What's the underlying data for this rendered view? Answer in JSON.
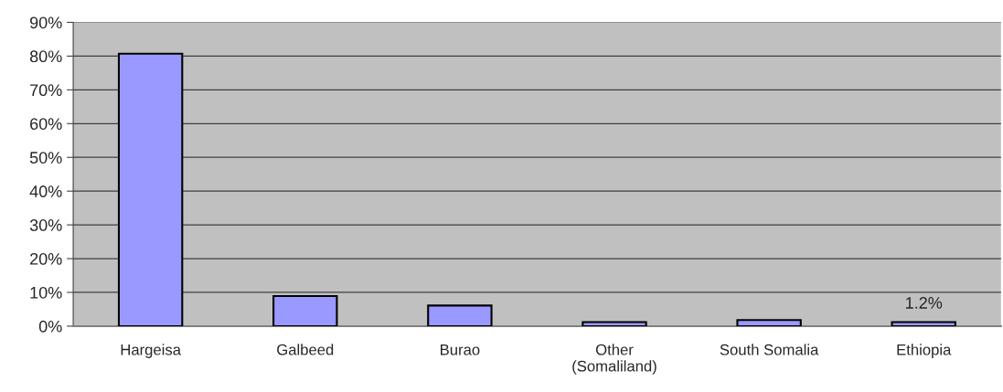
{
  "chart_data": {
    "type": "bar",
    "categories": [
      "Hargeisa",
      "Galbeed",
      "Burao",
      "Other\n(Somaliland)",
      "South Somalia",
      "Ethiopia"
    ],
    "values": [
      80.7,
      8.9,
      6.1,
      1.2,
      1.8,
      1.2
    ],
    "color": "#9999ff",
    "value_labels": [
      null,
      null,
      null,
      null,
      null,
      "1.2%"
    ],
    "ylim": [
      0,
      90
    ],
    "yticks": [
      {
        "value": 0,
        "label": "0%"
      },
      {
        "value": 10,
        "label": "10%"
      },
      {
        "value": 20,
        "label": "20%"
      },
      {
        "value": 30,
        "label": "30%"
      },
      {
        "value": 40,
        "label": "40%"
      },
      {
        "value": 50,
        "label": "50%"
      },
      {
        "value": 60,
        "label": "60%"
      },
      {
        "value": 70,
        "label": "70%"
      },
      {
        "value": 80,
        "label": "80%"
      },
      {
        "value": 90,
        "label": "90%"
      }
    ],
    "grid": "y"
  }
}
